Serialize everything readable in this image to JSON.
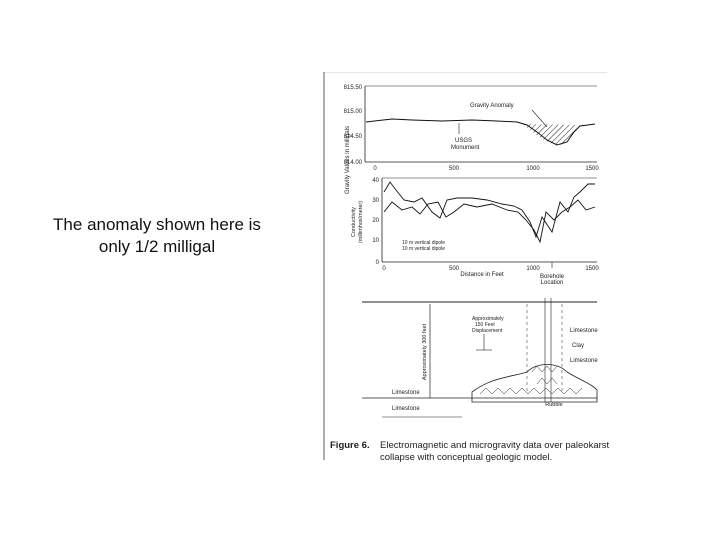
{
  "slide": {
    "text_lines": [
      "The anomaly shown here is",
      "only 1/2 milligal"
    ]
  },
  "figure": {
    "label": "Figure 6.",
    "caption_lines": [
      "Electromagnetic and microgravity data over paleokarst",
      "collapse with conceptual geologic model."
    ],
    "gravity": {
      "ylabel": "Gravity Values in milligals",
      "yticks": [
        "815.50",
        "815.00",
        "814.50",
        "814.00"
      ],
      "xticks": [
        "0",
        "500",
        "1000",
        "1500"
      ],
      "annotation_anomaly": "Gravity Anomaly",
      "annotation_usgs": [
        "USGS",
        "Monument"
      ]
    },
    "conductivity": {
      "ylabel": [
        "Conductivity",
        "(millimhos/meter)"
      ],
      "yticks": [
        "40",
        "30",
        "20",
        "10",
        "0"
      ],
      "xticks": [
        "0",
        "500",
        "1000",
        "1500"
      ],
      "xlabel": "Distance in Feet",
      "legend": [
        "10 m vertical dipole",
        "10 m vertical dipole"
      ],
      "borehole_label": [
        "Borehole",
        "Location"
      ]
    },
    "geology": {
      "depth_label": "Approximately 300 feet",
      "displacement_label": [
        "Approximately",
        "150 Feet",
        "Displacement"
      ],
      "layers_right": [
        "Limestone",
        "Clay",
        "Limestone"
      ],
      "layers_left": [
        "Limestone",
        "Limestone"
      ],
      "rubble_label": "Rubble"
    }
  }
}
